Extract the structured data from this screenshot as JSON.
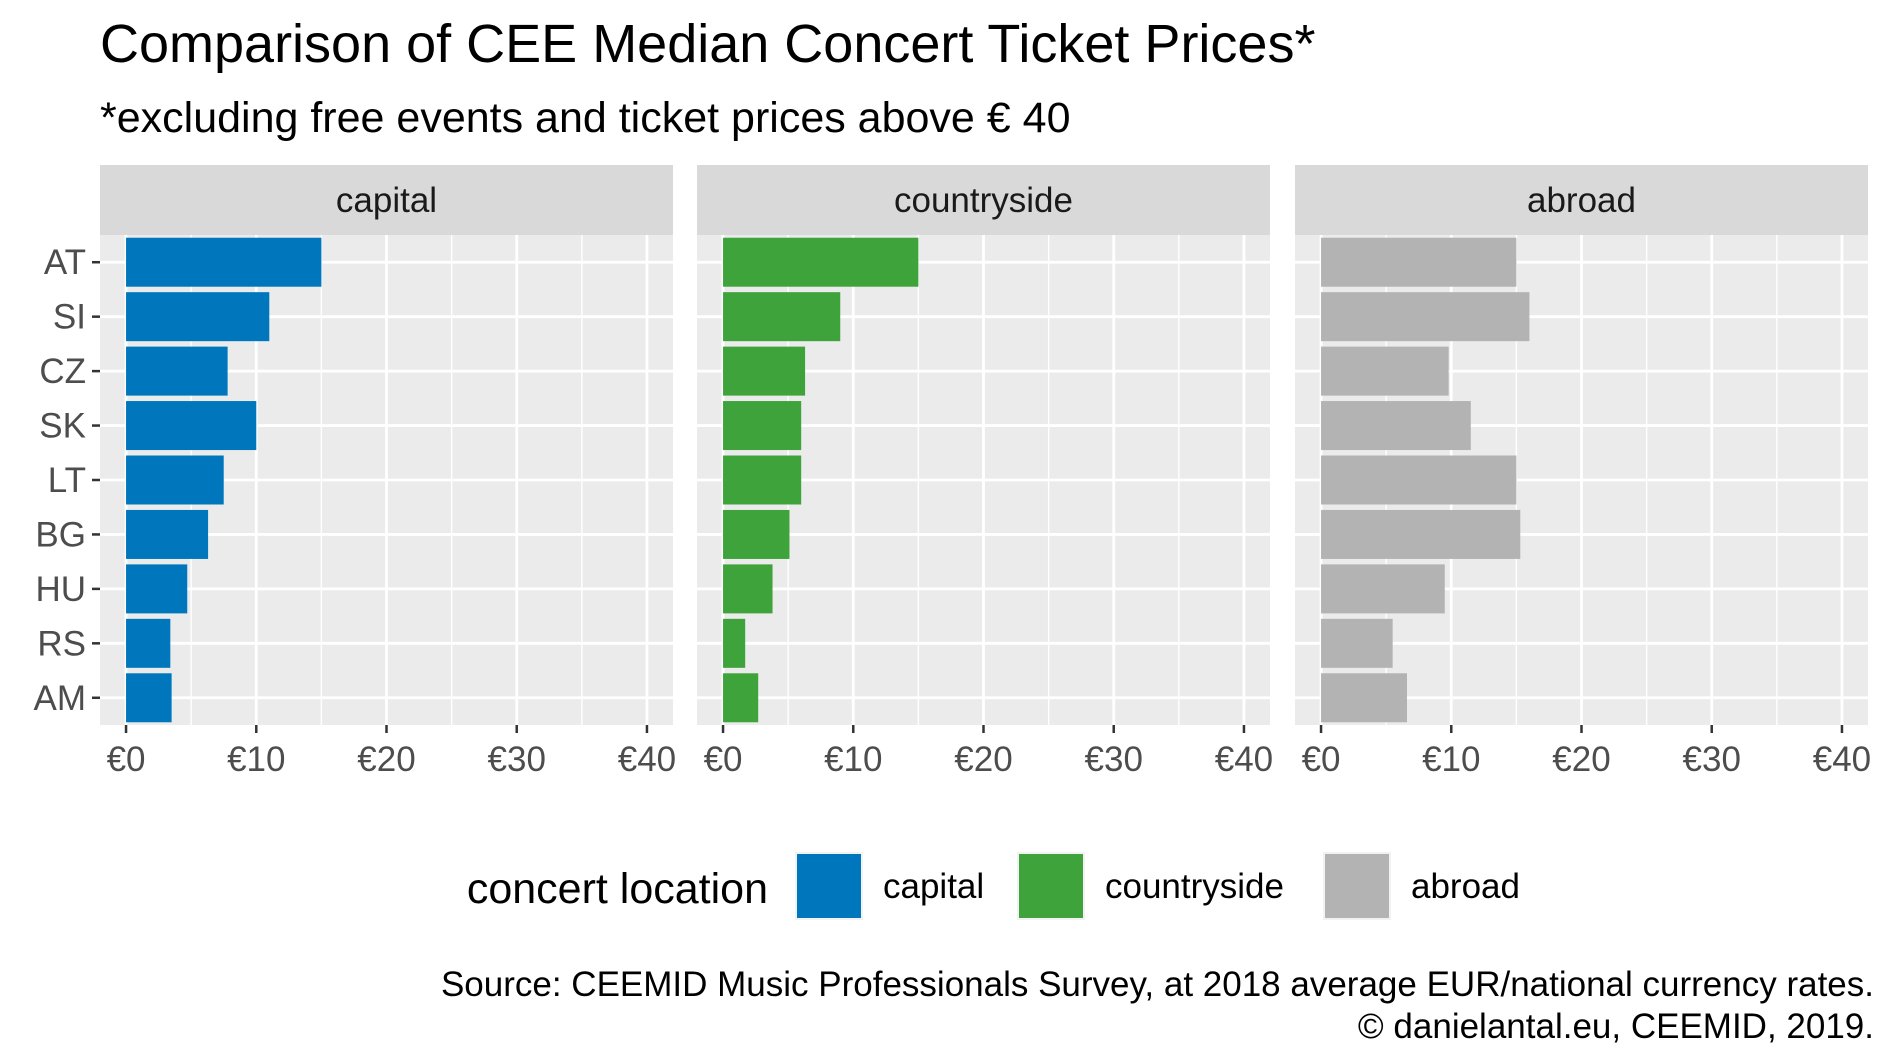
{
  "chart_data": {
    "type": "bar",
    "orientation": "horizontal",
    "title": "Comparison of CEE Median Concert Ticket Prices*",
    "subtitle": "*excluding free events and ticket prices above € 40",
    "categories": [
      "AT",
      "SI",
      "CZ",
      "SK",
      "LT",
      "BG",
      "HU",
      "RS",
      "AM"
    ],
    "x_ticks": [
      0,
      10,
      20,
      30,
      40
    ],
    "x_tick_labels": [
      "€0",
      "€10",
      "€20",
      "€30",
      "€40"
    ],
    "xlim": [
      -2,
      42
    ],
    "grid": true,
    "facets": [
      {
        "name": "capital",
        "color": "#0077bd",
        "values": [
          15,
          11,
          7.8,
          10,
          7.5,
          6.3,
          4.7,
          3.4,
          3.5
        ]
      },
      {
        "name": "countryside",
        "color": "#3ea33b",
        "values": [
          15,
          9,
          6.3,
          6,
          6,
          5.1,
          3.8,
          1.7,
          2.7
        ]
      },
      {
        "name": "abroad",
        "color": "#b3b3b3",
        "values": [
          15,
          16,
          9.8,
          11.5,
          15,
          15.3,
          9.5,
          5.5,
          6.6
        ]
      }
    ],
    "legend": {
      "title": "concert location",
      "placement": "bottom",
      "entries": [
        "capital",
        "countryside",
        "abroad"
      ]
    },
    "caption": [
      "Source: CEEMID Music Professionals Survey, at 2018 average EUR/national currency rates.",
      "© danielantal.eu, CEEMID, 2019."
    ]
  }
}
